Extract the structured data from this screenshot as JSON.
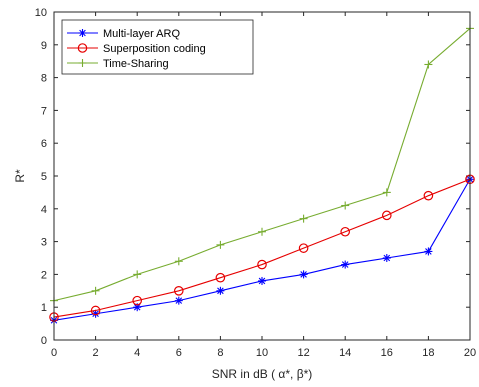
{
  "chart_data": {
    "type": "line",
    "title": "",
    "xlabel": "SNR in dB ( α*, β*)",
    "ylabel": "R*",
    "xlim": [
      0,
      20
    ],
    "ylim": [
      0,
      10
    ],
    "xticks": [
      0,
      2,
      4,
      6,
      8,
      10,
      12,
      14,
      16,
      18,
      20
    ],
    "yticks": [
      0,
      1,
      2,
      3,
      4,
      5,
      6,
      7,
      8,
      9,
      10
    ],
    "grid": false,
    "legend_position": "top-left",
    "series": [
      {
        "name": "Multi-layer ARQ",
        "color": "#0000ff",
        "marker": "asterisk",
        "x": [
          0,
          2,
          4,
          6,
          8,
          10,
          12,
          14,
          16,
          18,
          20
        ],
        "y": [
          0.6,
          0.8,
          1.0,
          1.2,
          1.5,
          1.8,
          2.0,
          2.3,
          2.5,
          2.7,
          4.9
        ]
      },
      {
        "name": "Superposition coding",
        "color": "#e60000",
        "marker": "circle",
        "x": [
          0,
          2,
          4,
          6,
          8,
          10,
          12,
          14,
          16,
          18,
          20
        ],
        "y": [
          0.7,
          0.9,
          1.2,
          1.5,
          1.9,
          2.3,
          2.8,
          3.3,
          3.8,
          4.4,
          4.9
        ]
      },
      {
        "name": "Time-Sharing",
        "color": "#77ac30",
        "marker": "plus",
        "x": [
          0,
          2,
          4,
          6,
          8,
          10,
          12,
          14,
          16,
          18,
          20
        ],
        "y": [
          1.2,
          1.5,
          2.0,
          2.4,
          2.9,
          3.3,
          3.7,
          4.1,
          4.5,
          8.4,
          9.5
        ]
      }
    ]
  }
}
